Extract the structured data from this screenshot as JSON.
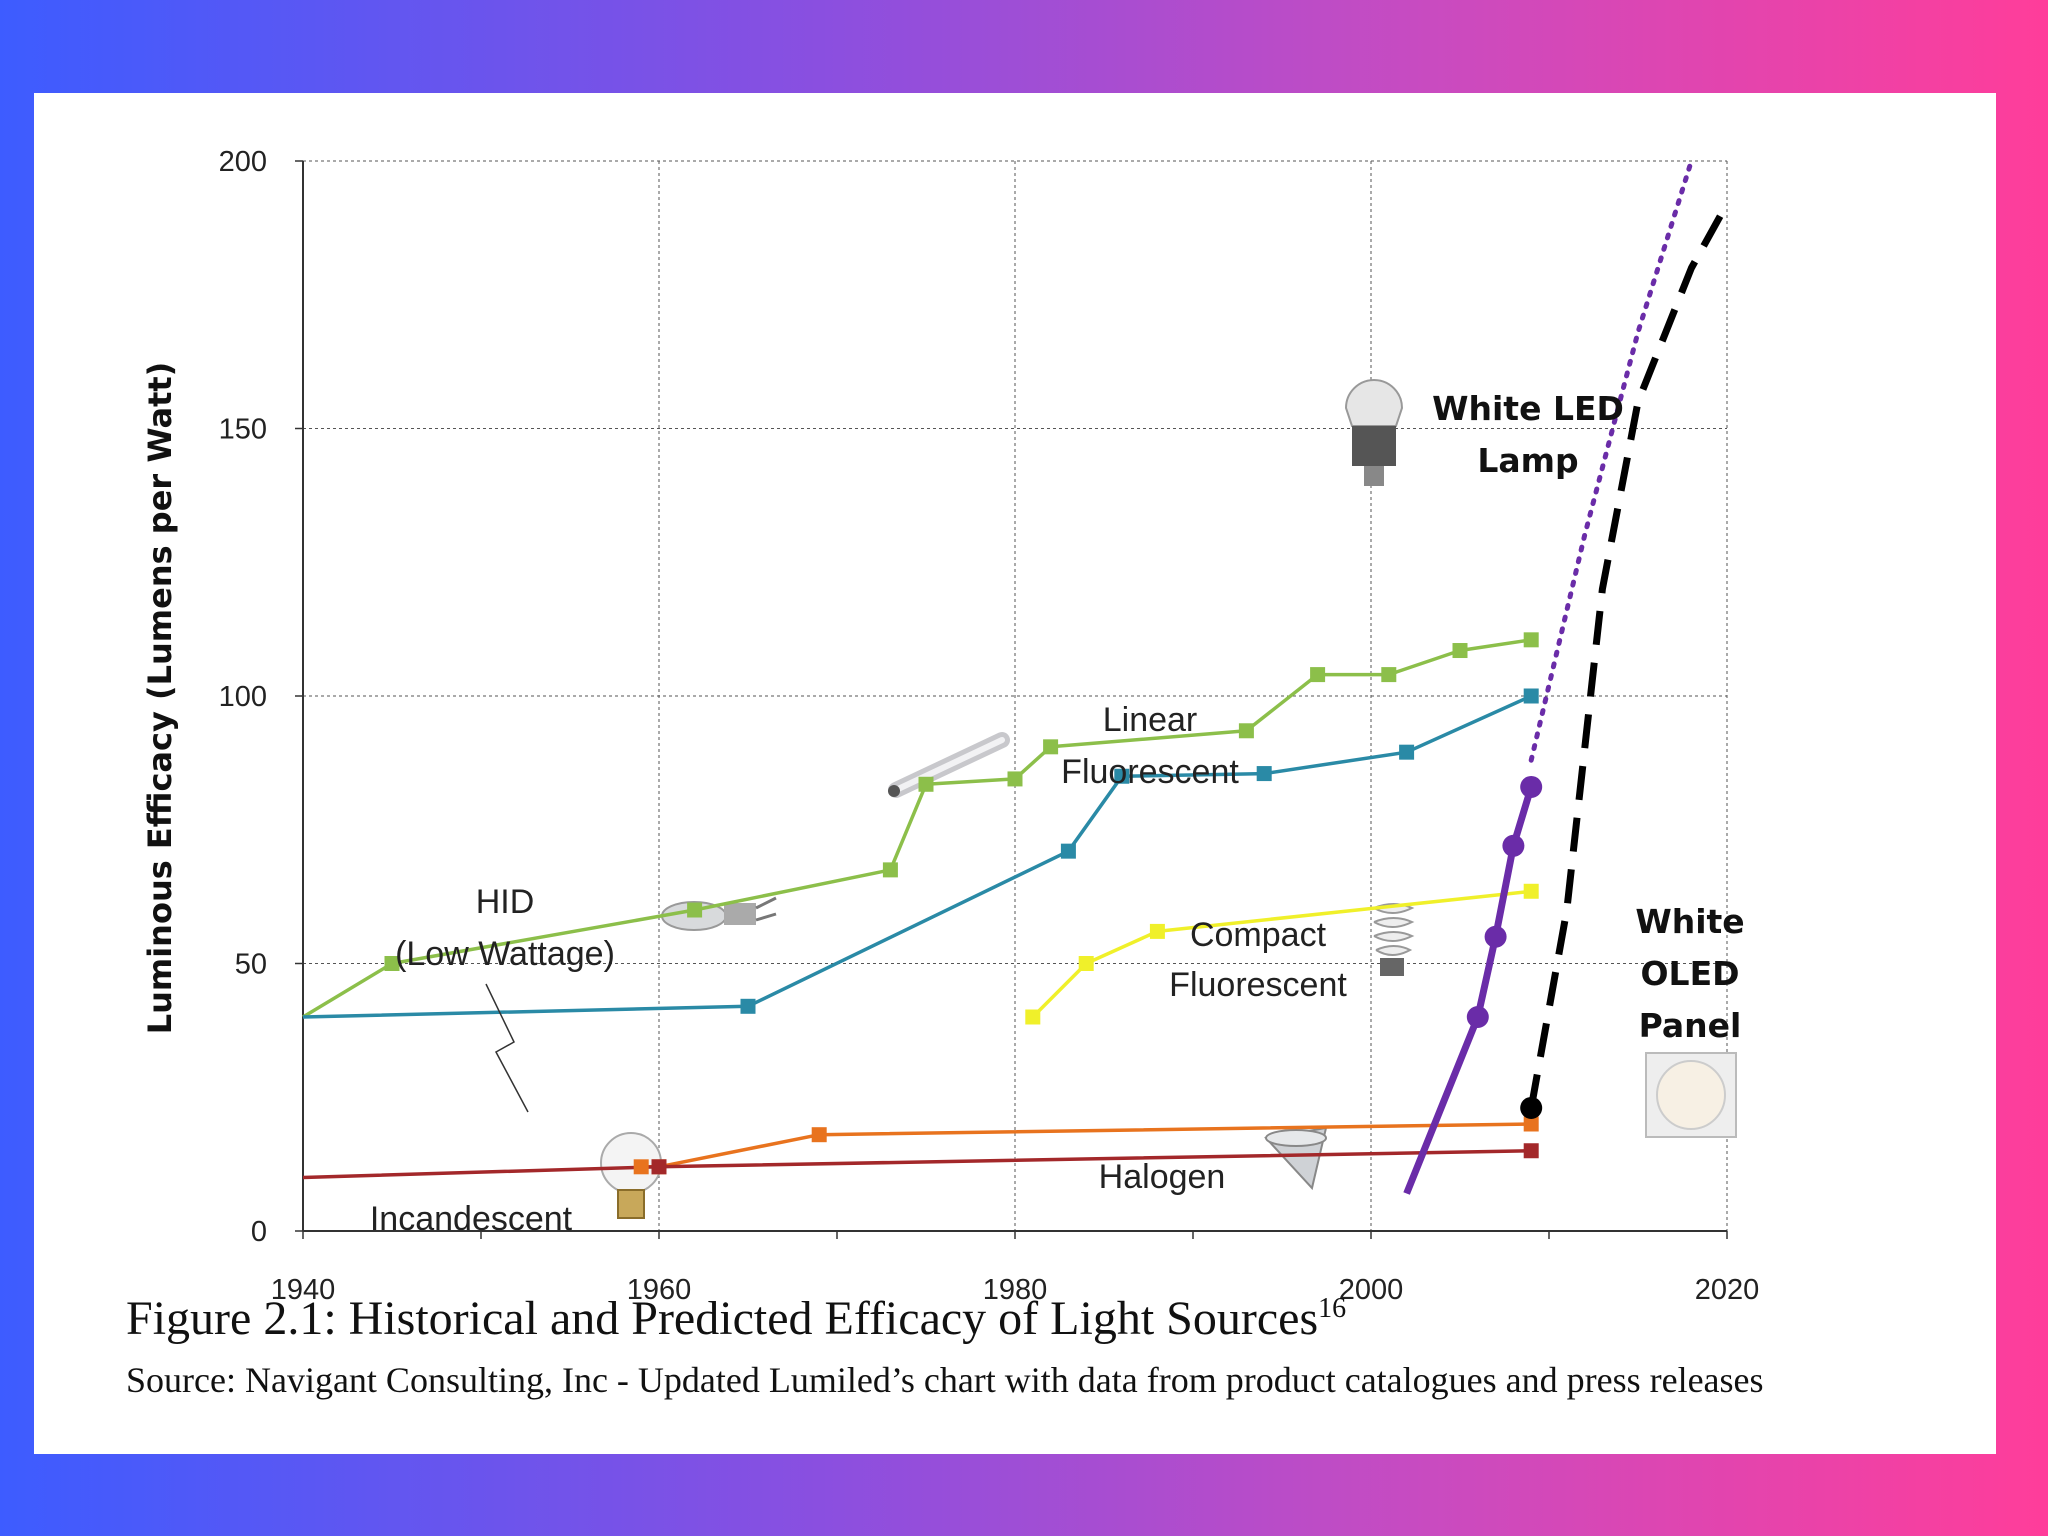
{
  "chart_data": {
    "type": "line",
    "title": "",
    "xlabel": "",
    "ylabel": "Luminous Efficacy (Lumens per Watt)",
    "xlim": [
      1940,
      2020
    ],
    "ylim": [
      0,
      200
    ],
    "xticks": [
      "1940",
      "1960",
      "1980",
      "2000",
      "2020"
    ],
    "yticks": [
      "0",
      "50",
      "100",
      "150",
      "200"
    ],
    "grid": true,
    "series": [
      {
        "name": "Linear Fluorescent",
        "color": "#8cbf4a",
        "x": [
          1940,
          1945,
          1962,
          1973,
          1975,
          1980,
          1982,
          1993,
          1997,
          2001,
          2005,
          2009
        ],
        "y": [
          40,
          50,
          60,
          67.5,
          83.5,
          84.5,
          90.5,
          93.5,
          104,
          104,
          108.5,
          110.5
        ]
      },
      {
        "name": "HID (Low Wattage)",
        "color": "#2a8aa6",
        "x": [
          1940,
          1965,
          1983,
          1986,
          1994,
          2002,
          2009
        ],
        "y": [
          40,
          42,
          71,
          85,
          85.5,
          89.5,
          100
        ]
      },
      {
        "name": "Compact Fluorescent",
        "color": "#f0f02a",
        "x": [
          1981,
          1984,
          1988,
          2009
        ],
        "y": [
          40,
          50,
          56,
          63.5
        ]
      },
      {
        "name": "Halogen",
        "color": "#e8731e",
        "x": [
          1959,
          1960,
          1969,
          2009
        ],
        "y": [
          12,
          12,
          18,
          20
        ]
      },
      {
        "name": "Incandescent",
        "color": "#a3282a",
        "x": [
          1940,
          1960,
          2009
        ],
        "y": [
          10,
          12,
          15
        ]
      },
      {
        "name": "White LED Lamp",
        "color": "#6a2ca8",
        "x": [
          2002,
          2006,
          2007,
          2008,
          2009
        ],
        "y": [
          7,
          40,
          55,
          72,
          83
        ]
      },
      {
        "name": "White LED Lamp (predicted)",
        "color": "#6a2ca8",
        "style": "dotted",
        "x": [
          2009,
          2012,
          2015,
          2018
        ],
        "y": [
          88,
          130,
          168,
          200
        ]
      },
      {
        "name": "White OLED Panel (predicted)",
        "color": "#000000",
        "style": "dashed",
        "x": [
          2009,
          2011,
          2013,
          2015,
          2018,
          2020
        ],
        "y": [
          23,
          60,
          120,
          155,
          180,
          192
        ]
      }
    ],
    "markers": {
      "White OLED Panel": {
        "x": 2009,
        "y": 23
      }
    },
    "annotations": {
      "hid": [
        "HID",
        "(Low Wattage)"
      ],
      "linear": [
        "Linear",
        "Fluorescent"
      ],
      "compact": [
        "Compact",
        "Fluorescent"
      ],
      "halogen": "Halogen",
      "incandescent": "Incandescent",
      "led": [
        "White LED",
        "Lamp"
      ],
      "oled": [
        "White",
        "OLED",
        "Panel"
      ]
    }
  },
  "caption": {
    "title": "Figure 2.1: Historical and Predicted Efficacy of Light Sources",
    "footnote": "16",
    "source": "Source: Navigant Consulting, Inc - Updated Lumiled’s chart with data from product catalogues and press releases"
  }
}
